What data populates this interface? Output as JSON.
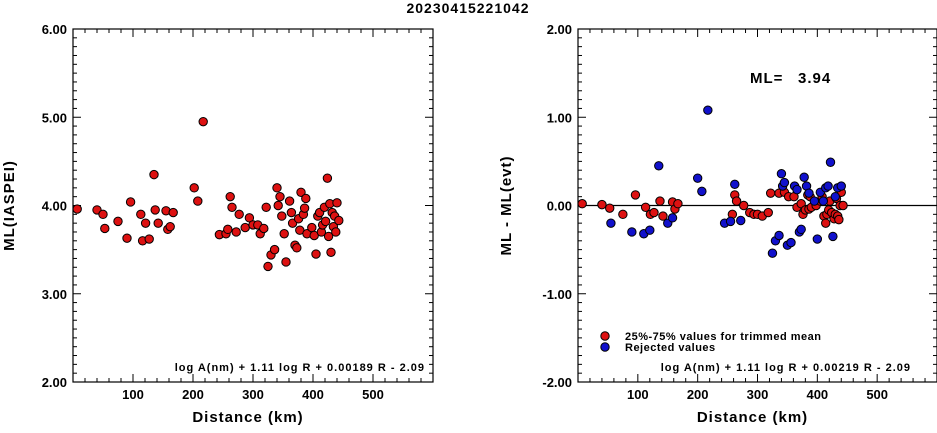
{
  "figure": {
    "title": "20230415221042"
  },
  "chart_data": [
    {
      "type": "scatter",
      "ylabel": "ML(IASPEI)",
      "xlabel": "Distance (km)",
      "xlim": [
        0,
        600
      ],
      "ylim": [
        2.0,
        6.0
      ],
      "x_ticks": [
        "100",
        "200",
        "300",
        "400",
        "500"
      ],
      "y_ticks": [
        "2.00",
        "3.00",
        "4.00",
        "5.00",
        "6.00"
      ],
      "annotation": "log A(nm) + 1.11 log R + 0.00189 R - 2.09",
      "series": [
        {
          "color": "#dd1111",
          "points": [
            [
              7,
              3.96
            ],
            [
              40,
              3.95
            ],
            [
              50,
              3.9
            ],
            [
              53,
              3.74
            ],
            [
              75,
              3.82
            ],
            [
              90,
              3.63
            ],
            [
              96,
              4.04
            ],
            [
              113,
              3.9
            ],
            [
              116,
              3.6
            ],
            [
              121,
              3.8
            ],
            [
              127,
              3.62
            ],
            [
              135,
              4.35
            ],
            [
              137,
              3.95
            ],
            [
              142,
              3.8
            ],
            [
              155,
              3.94
            ],
            [
              158,
              3.73
            ],
            [
              162,
              3.76
            ],
            [
              167,
              3.92
            ],
            [
              202,
              4.2
            ],
            [
              208,
              4.05
            ],
            [
              217,
              4.95
            ],
            [
              244,
              3.67
            ],
            [
              255,
              3.68
            ],
            [
              258,
              3.73
            ],
            [
              262,
              4.1
            ],
            [
              265,
              3.98
            ],
            [
              272,
              3.7
            ],
            [
              277,
              3.9
            ],
            [
              287,
              3.75
            ],
            [
              294,
              3.86
            ],
            [
              300,
              3.78
            ],
            [
              308,
              3.78
            ],
            [
              312,
              3.68
            ],
            [
              318,
              3.74
            ],
            [
              322,
              3.98
            ],
            [
              325,
              3.31
            ],
            [
              330,
              3.44
            ],
            [
              336,
              3.5
            ],
            [
              340,
              4.2
            ],
            [
              342,
              4.0
            ],
            [
              345,
              4.1
            ],
            [
              348,
              3.88
            ],
            [
              352,
              3.68
            ],
            [
              355,
              3.36
            ],
            [
              361,
              4.05
            ],
            [
              364,
              3.92
            ],
            [
              366,
              3.8
            ],
            [
              370,
              3.55
            ],
            [
              373,
              3.52
            ],
            [
              376,
              3.85
            ],
            [
              378,
              3.72
            ],
            [
              380,
              4.15
            ],
            [
              384,
              3.9
            ],
            [
              386,
              3.97
            ],
            [
              388,
              4.08
            ],
            [
              390,
              3.68
            ],
            [
              398,
              3.75
            ],
            [
              402,
              3.66
            ],
            [
              405,
              3.45
            ],
            [
              408,
              3.88
            ],
            [
              411,
              3.92
            ],
            [
              414,
              3.7
            ],
            [
              416,
              3.78
            ],
            [
              419,
              3.98
            ],
            [
              421,
              3.82
            ],
            [
              424,
              4.31
            ],
            [
              426,
              3.65
            ],
            [
              428,
              4.02
            ],
            [
              430,
              3.47
            ],
            [
              432,
              3.92
            ],
            [
              434,
              3.76
            ],
            [
              436,
              3.88
            ],
            [
              438,
              3.7
            ],
            [
              440,
              4.03
            ],
            [
              443,
              3.83
            ]
          ]
        }
      ]
    },
    {
      "type": "scatter",
      "ylabel": "ML - ML(evt)",
      "xlabel": "Distance (km)",
      "xlim": [
        0,
        600
      ],
      "ylim": [
        -2.0,
        2.0
      ],
      "x_ticks": [
        "100",
        "200",
        "300",
        "400",
        "500"
      ],
      "y_ticks": [
        "-2.00",
        "-1.00",
        "0.00",
        "1.00",
        "2.00"
      ],
      "reference_line": 0,
      "ml_label": "ML=",
      "ml_value": "3.94",
      "annotation": "log A(nm) + 1.11 log R + 0.00219 R - 2.09",
      "legend": [
        {
          "label": "25%-75% values for trimmed mean",
          "color": "#dd1111"
        },
        {
          "label": "Rejected values",
          "color": "#1111cc"
        }
      ],
      "series": [
        {
          "color": "#dd1111",
          "points": [
            [
              7,
              0.02
            ],
            [
              40,
              0.01
            ],
            [
              53,
              -0.03
            ],
            [
              75,
              -0.1
            ],
            [
              96,
              0.12
            ],
            [
              113,
              -0.02
            ],
            [
              121,
              -0.1
            ],
            [
              127,
              -0.08
            ],
            [
              137,
              0.05
            ],
            [
              142,
              -0.12
            ],
            [
              158,
              0.04
            ],
            [
              162,
              -0.04
            ],
            [
              167,
              0.02
            ],
            [
              258,
              -0.1
            ],
            [
              262,
              0.12
            ],
            [
              265,
              0.05
            ],
            [
              277,
              0.0
            ],
            [
              287,
              -0.08
            ],
            [
              294,
              -0.1
            ],
            [
              300,
              -0.1
            ],
            [
              308,
              -0.12
            ],
            [
              318,
              -0.08
            ],
            [
              322,
              0.14
            ],
            [
              336,
              0.14
            ],
            [
              345,
              0.15
            ],
            [
              352,
              0.1
            ],
            [
              361,
              0.1
            ],
            [
              366,
              -0.02
            ],
            [
              373,
              0.02
            ],
            [
              376,
              -0.1
            ],
            [
              380,
              -0.05
            ],
            [
              384,
              0.12
            ],
            [
              386,
              -0.04
            ],
            [
              388,
              0.1
            ],
            [
              390,
              -0.02
            ],
            [
              398,
              0.0
            ],
            [
              405,
              0.05
            ],
            [
              408,
              0.1
            ],
            [
              411,
              -0.12
            ],
            [
              414,
              -0.2
            ],
            [
              416,
              -0.1
            ],
            [
              419,
              -0.05
            ],
            [
              421,
              0.05
            ],
            [
              424,
              -0.08
            ],
            [
              428,
              -0.15
            ],
            [
              430,
              -0.1
            ],
            [
              432,
              0.08
            ],
            [
              434,
              -0.12
            ],
            [
              436,
              -0.16
            ],
            [
              438,
              0.0
            ],
            [
              440,
              0.15
            ],
            [
              443,
              0.0
            ]
          ]
        },
        {
          "color": "#1111cc",
          "points": [
            [
              55,
              -0.2
            ],
            [
              90,
              -0.3
            ],
            [
              110,
              -0.32
            ],
            [
              120,
              -0.28
            ],
            [
              135,
              0.45
            ],
            [
              150,
              -0.2
            ],
            [
              158,
              -0.14
            ],
            [
              200,
              0.31
            ],
            [
              207,
              0.16
            ],
            [
              217,
              1.08
            ],
            [
              245,
              -0.2
            ],
            [
              255,
              -0.18
            ],
            [
              262,
              0.24
            ],
            [
              272,
              -0.17
            ],
            [
              325,
              -0.54
            ],
            [
              330,
              -0.4
            ],
            [
              336,
              -0.34
            ],
            [
              340,
              0.36
            ],
            [
              342,
              0.22
            ],
            [
              345,
              0.26
            ],
            [
              350,
              -0.45
            ],
            [
              356,
              -0.42
            ],
            [
              362,
              0.22
            ],
            [
              366,
              0.18
            ],
            [
              370,
              -0.3
            ],
            [
              373,
              -0.27
            ],
            [
              378,
              0.32
            ],
            [
              382,
              0.22
            ],
            [
              386,
              0.14
            ],
            [
              395,
              0.05
            ],
            [
              400,
              -0.38
            ],
            [
              405,
              0.15
            ],
            [
              410,
              0.05
            ],
            [
              414,
              0.2
            ],
            [
              418,
              0.22
            ],
            [
              422,
              0.49
            ],
            [
              426,
              -0.35
            ],
            [
              430,
              0.1
            ],
            [
              434,
              0.2
            ],
            [
              440,
              0.22
            ]
          ]
        }
      ]
    }
  ]
}
